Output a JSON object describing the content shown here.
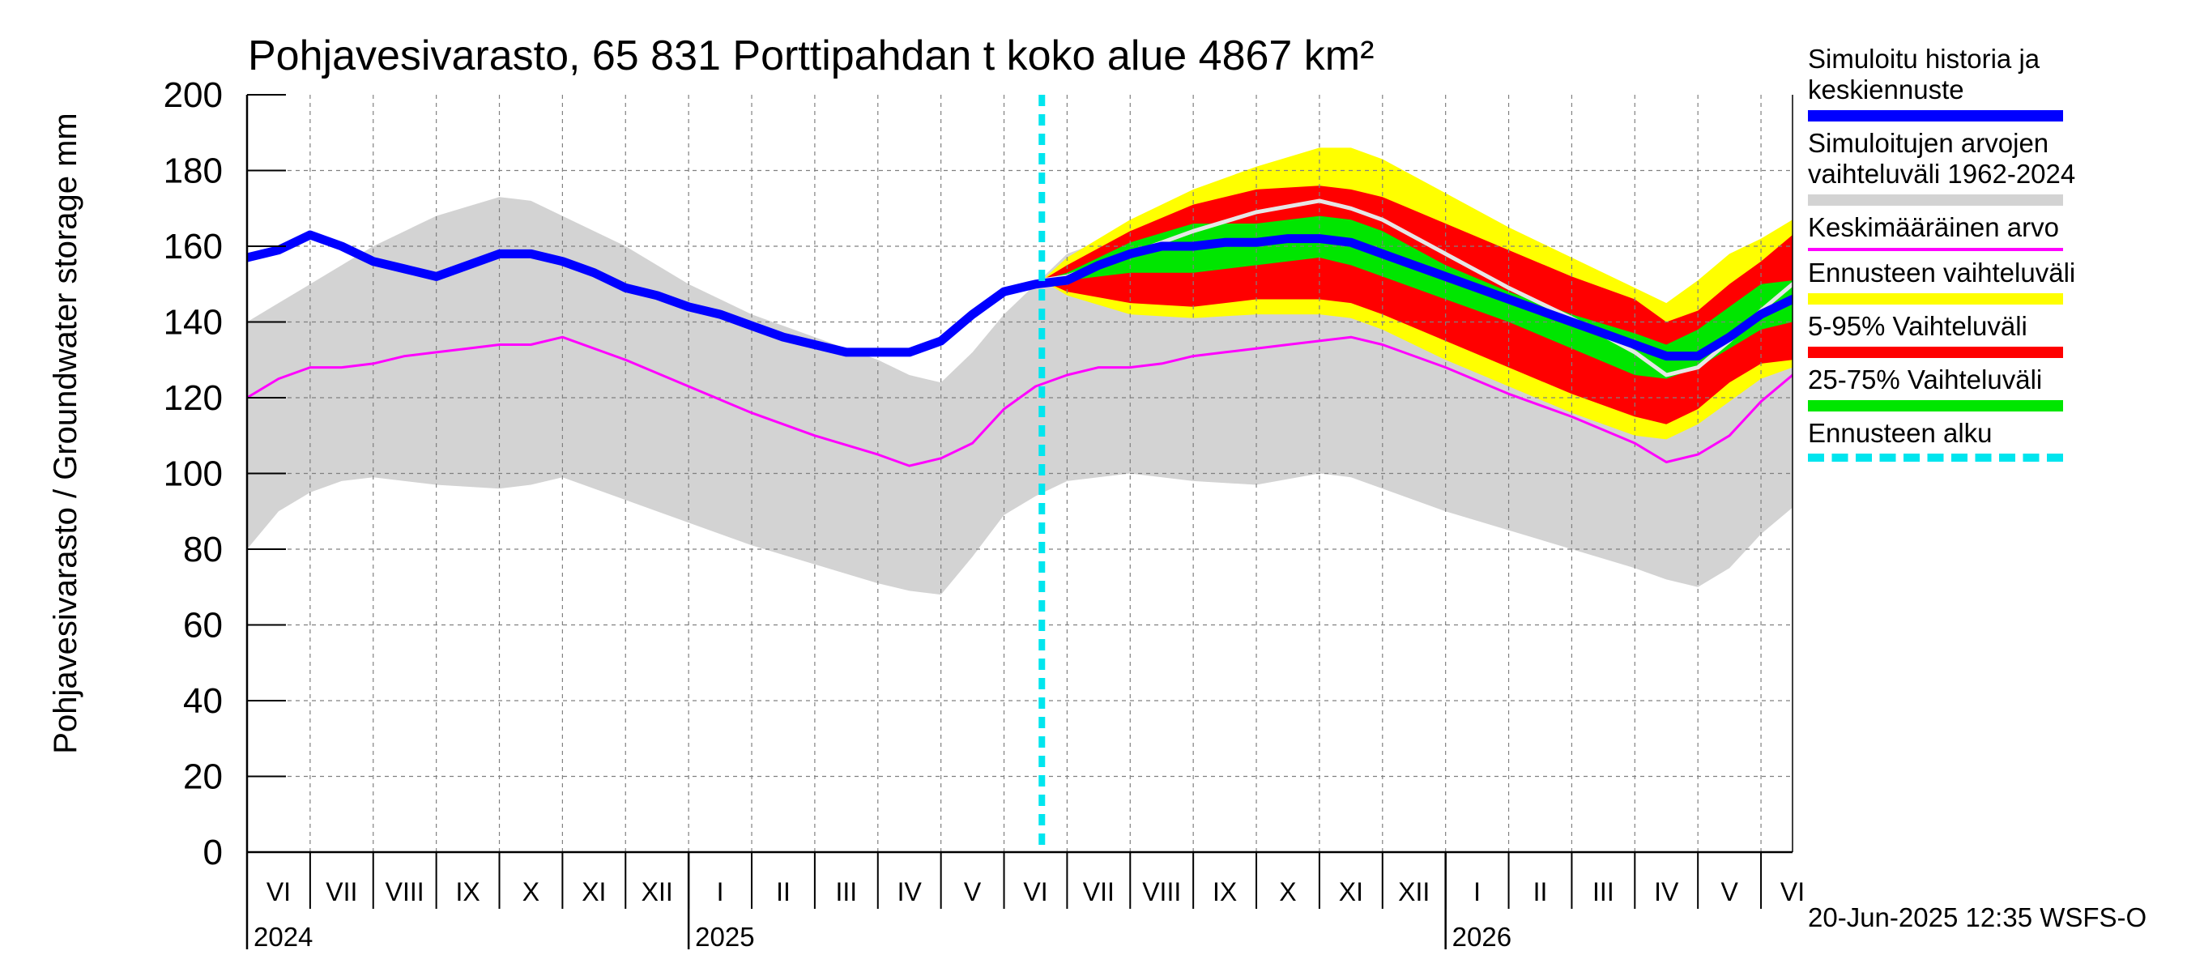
{
  "chart_data": {
    "type": "area",
    "title": "Pohjavesivarasto, 65 831 Porttipahdan t koko alue 4867 km²",
    "ylabel": "Pohjavesivarasto / Groundwater storage   mm",
    "ylim": [
      0,
      200
    ],
    "yticks": [
      0,
      20,
      40,
      60,
      80,
      100,
      120,
      140,
      160,
      180,
      200
    ],
    "xlim_months": [
      0,
      24.5
    ],
    "month_labels": [
      "VI",
      "VII",
      "VIII",
      "IX",
      "X",
      "XI",
      "XII",
      "I",
      "II",
      "III",
      "IV",
      "V",
      "VI",
      "VII",
      "VIII",
      "IX",
      "X",
      "XI",
      "XII",
      "I",
      "II",
      "III",
      "IV",
      "V",
      "VI"
    ],
    "year_labels": [
      {
        "label": "2024",
        "month": 0
      },
      {
        "label": "2025",
        "month": 7
      },
      {
        "label": "2026",
        "month": 19
      }
    ],
    "forecast_start_month": 12.6,
    "series": [
      {
        "name": "Simuloitujen arvojen vaihteluväli 1962-2024",
        "kind": "band",
        "color": "#d3d3d3",
        "x": [
          0,
          0.5,
          1,
          1.5,
          2,
          3,
          4,
          4.5,
          5,
          6,
          7,
          8,
          9,
          10,
          10.5,
          11,
          11.5,
          12,
          12.5,
          13,
          14,
          15,
          16,
          17,
          17.5,
          18,
          19,
          20,
          21,
          22,
          22.5,
          23,
          23.5,
          24,
          24.5
        ],
        "upper": [
          140,
          145,
          150,
          155,
          160,
          168,
          173,
          172,
          168,
          160,
          150,
          142,
          136,
          130,
          126,
          124,
          132,
          142,
          150,
          158,
          164,
          170,
          176,
          180,
          180,
          174,
          164,
          154,
          146,
          139,
          136,
          136,
          144,
          156,
          164
        ],
        "lower": [
          80,
          90,
          95,
          98,
          99,
          97,
          96,
          97,
          99,
          93,
          87,
          81,
          76,
          71,
          69,
          68,
          78,
          89,
          94,
          98,
          100,
          98,
          97,
          100,
          99,
          96,
          90,
          85,
          80,
          75,
          72,
          70,
          75,
          84,
          91
        ]
      },
      {
        "name": "Ennusteen vaihteluväli",
        "kind": "band",
        "color": "#ffff00",
        "x": [
          12.6,
          13,
          14,
          15,
          16,
          17,
          17.5,
          18,
          19,
          20,
          21,
          22,
          22.5,
          23,
          23.5,
          24,
          24.5
        ],
        "upper": [
          151,
          157,
          167,
          175,
          181,
          186,
          186,
          183,
          174,
          165,
          157,
          149,
          145,
          151,
          158,
          162,
          167
        ],
        "lower": [
          151,
          147,
          142,
          141,
          142,
          142,
          141,
          138,
          130,
          123,
          116,
          110,
          109,
          113,
          119,
          125,
          128
        ]
      },
      {
        "name": "5-95% Vaihteluväli",
        "kind": "band",
        "color": "#ff0000",
        "x": [
          12.6,
          13,
          14,
          15,
          16,
          17,
          17.5,
          18,
          19,
          20,
          21,
          22,
          22.5,
          23,
          23.5,
          24,
          24.5
        ],
        "upper": [
          151,
          155,
          164,
          171,
          175,
          176,
          175,
          173,
          166,
          159,
          152,
          146,
          140,
          143,
          150,
          156,
          163
        ],
        "lower": [
          151,
          148,
          145,
          144,
          146,
          146,
          145,
          142,
          135,
          128,
          121,
          115,
          113,
          117,
          124,
          129,
          130
        ]
      },
      {
        "name": "25-75% Vaihteluväli",
        "kind": "band",
        "color": "#00e600",
        "x": [
          12.6,
          13,
          14,
          15,
          16,
          17,
          17.5,
          18,
          19,
          20,
          21,
          22,
          22.5,
          23,
          23.5,
          24,
          24.5
        ],
        "upper": [
          151,
          153,
          161,
          166,
          166,
          168,
          167,
          164,
          155,
          148,
          142,
          137,
          134,
          138,
          144,
          150,
          151
        ],
        "lower": [
          151,
          151,
          153,
          153,
          155,
          157,
          155,
          152,
          146,
          140,
          133,
          126,
          125,
          128,
          133,
          138,
          140
        ]
      },
      {
        "name": "Simuloitujen arvojen vaihteluväli 1962-2024 (max)",
        "kind": "line",
        "color": "#e6e6e6",
        "x": [
          12.6,
          13,
          14,
          15,
          16,
          17,
          17.5,
          18,
          19,
          20,
          21,
          22,
          22.5,
          23,
          23.5,
          24,
          24.5
        ],
        "y": [
          151,
          152,
          158,
          164,
          169,
          172,
          170,
          167,
          158,
          149,
          141,
          132,
          126,
          128,
          135,
          143,
          150
        ]
      },
      {
        "name": "Keskimääräinen arvo",
        "kind": "line",
        "color": "#ff00ff",
        "x": [
          0,
          0.5,
          1,
          1.5,
          2,
          2.5,
          3,
          3.5,
          4,
          4.5,
          5,
          6,
          7,
          8,
          9,
          10,
          10.5,
          11,
          11.5,
          12,
          12.5,
          13,
          13.5,
          14,
          14.5,
          15,
          15.5,
          16,
          16.5,
          17,
          17.5,
          18,
          19,
          20,
          21,
          22,
          22.5,
          23,
          23.5,
          24,
          24.5
        ],
        "y": [
          120,
          125,
          128,
          128,
          129,
          131,
          132,
          133,
          134,
          134,
          136,
          130,
          123,
          116,
          110,
          105,
          102,
          104,
          108,
          117,
          123,
          126,
          128,
          128,
          129,
          131,
          132,
          133,
          134,
          135,
          136,
          134,
          128,
          121,
          115,
          108,
          103,
          105,
          110,
          119,
          126
        ]
      },
      {
        "name": "Simuloitu historia ja keskiennuste",
        "kind": "line",
        "color": "#0000ff",
        "x": [
          0,
          0.5,
          1,
          1.5,
          2,
          2.5,
          3,
          3.5,
          4,
          4.5,
          5,
          5.5,
          6,
          6.5,
          7,
          7.5,
          8,
          8.5,
          9,
          9.5,
          10,
          10.5,
          11,
          11.5,
          12,
          12.5,
          13,
          13.5,
          14,
          14.5,
          15,
          15.5,
          16,
          16.5,
          17,
          17.5,
          18,
          18.5,
          19,
          19.5,
          20,
          20.5,
          21,
          21.5,
          22,
          22.5,
          23,
          23.5,
          24,
          24.5
        ],
        "y": [
          157,
          159,
          163,
          160,
          156,
          154,
          152,
          155,
          158,
          158,
          156,
          153,
          149,
          147,
          144,
          142,
          139,
          136,
          134,
          132,
          132,
          132,
          135,
          142,
          148,
          150,
          151,
          155,
          158,
          160,
          160,
          161,
          161,
          162,
          162,
          161,
          158,
          155,
          152,
          149,
          146,
          143,
          140,
          137,
          134,
          131,
          131,
          136,
          142,
          146
        ]
      }
    ],
    "legend": [
      {
        "label": "Simuloitu historia ja\nkeskiennuste",
        "color": "#0000ff",
        "style": "thick-line"
      },
      {
        "label": "Simuloitujen arvojen\nvaihteluväli 1962-2024",
        "color": "#d3d3d3",
        "style": "band"
      },
      {
        "label": "Keskimääräinen arvo",
        "color": "#ff00ff",
        "style": "thin-line"
      },
      {
        "label": "Ennusteen vaihteluväli",
        "color": "#ffff00",
        "style": "band"
      },
      {
        "label": "5-95% Vaihteluväli",
        "color": "#ff0000",
        "style": "band"
      },
      {
        "label": "25-75% Vaihteluväli",
        "color": "#00e600",
        "style": "band"
      },
      {
        "label": "Ennusteen alku",
        "color": "#00e5ee",
        "style": "dashed"
      }
    ]
  },
  "footer": {
    "timestamp": "20-Jun-2025 12:35 WSFS-O"
  }
}
